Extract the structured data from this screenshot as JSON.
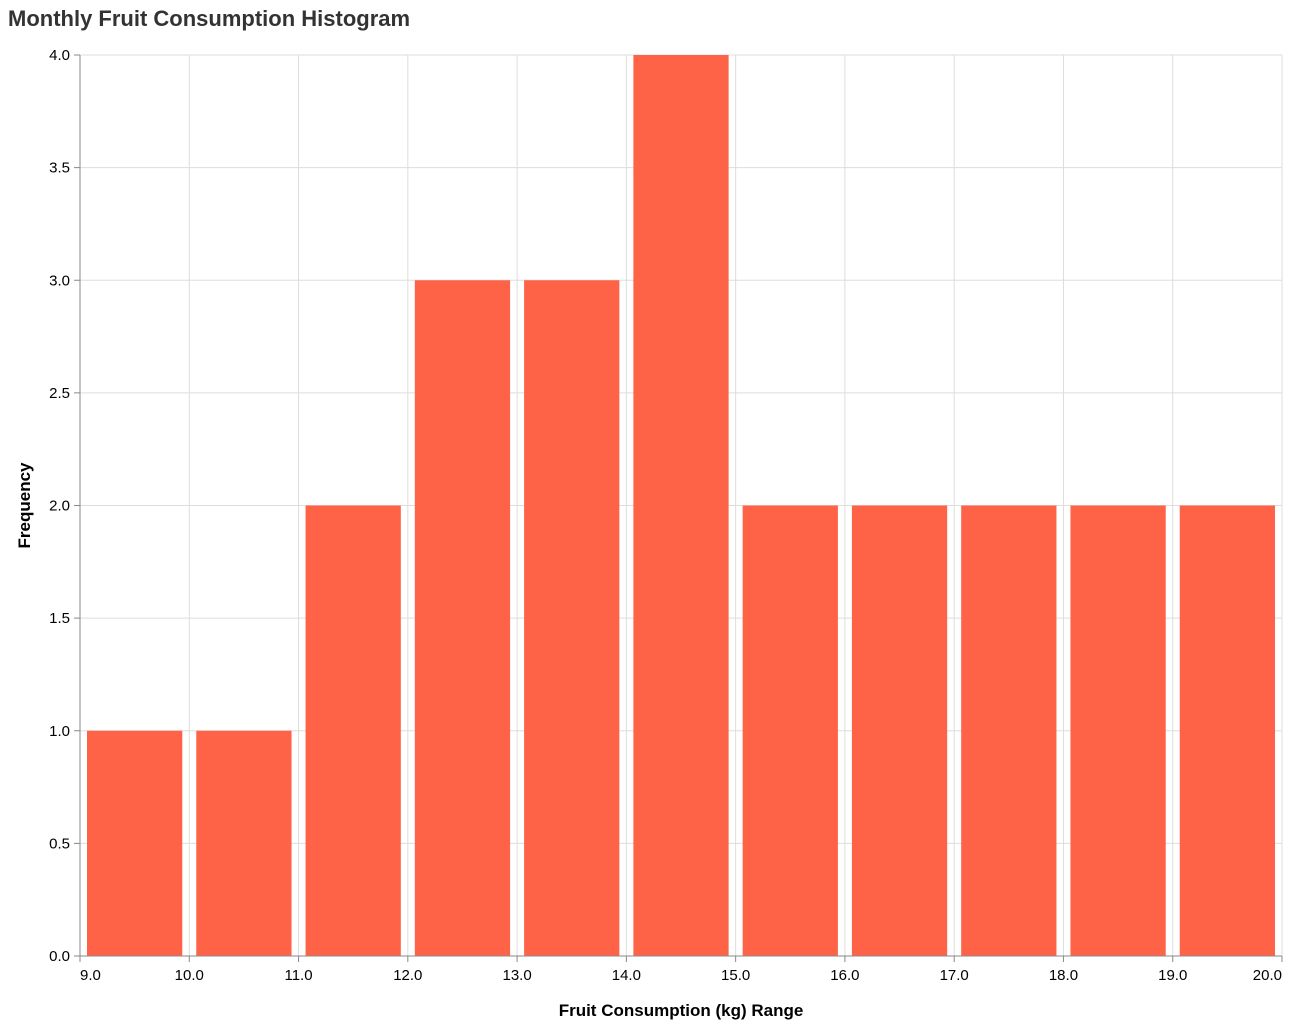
{
  "title": "Monthly Fruit Consumption Histogram",
  "colors": {
    "bar": "#ff6347",
    "grid": "#dddddd",
    "axis": "#888888",
    "title": "#333333"
  },
  "chart_data": {
    "type": "bar",
    "title": "Monthly Fruit Consumption Histogram",
    "xlabel": "Fruit Consumption (kg) Range",
    "ylabel": "Frequency",
    "xlim": [
      9,
      20
    ],
    "ylim": [
      0,
      4
    ],
    "grid": true,
    "bins": [
      {
        "start": 9,
        "end": 10,
        "count": 1
      },
      {
        "start": 10,
        "end": 11,
        "count": 1
      },
      {
        "start": 11,
        "end": 12,
        "count": 2
      },
      {
        "start": 12,
        "end": 13,
        "count": 3
      },
      {
        "start": 13,
        "end": 14,
        "count": 3
      },
      {
        "start": 14,
        "end": 15,
        "count": 4
      },
      {
        "start": 15,
        "end": 16,
        "count": 2
      },
      {
        "start": 16,
        "end": 17,
        "count": 2
      },
      {
        "start": 17,
        "end": 18,
        "count": 2
      },
      {
        "start": 18,
        "end": 19,
        "count": 2
      },
      {
        "start": 19,
        "end": 20,
        "count": 2
      }
    ],
    "x_ticks": [
      "9.0",
      "10.0",
      "11.0",
      "12.0",
      "13.0",
      "14.0",
      "15.0",
      "16.0",
      "17.0",
      "18.0",
      "19.0",
      "20.0"
    ],
    "y_ticks": [
      "0.0",
      "0.5",
      "1.0",
      "1.5",
      "2.0",
      "2.5",
      "3.0",
      "3.5",
      "4.0"
    ]
  }
}
